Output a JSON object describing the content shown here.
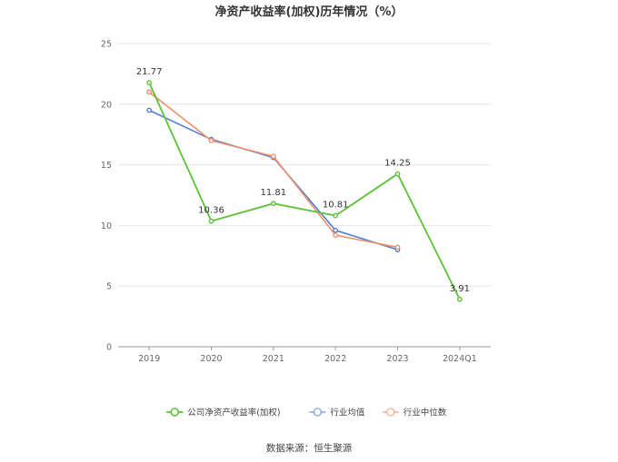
{
  "chart_data": {
    "type": "line",
    "title": "净资产收益率(加权)历年情况（%）",
    "categories": [
      "2019",
      "2020",
      "2021",
      "2022",
      "2023",
      "2024Q1"
    ],
    "ylim": [
      0,
      25
    ],
    "yticks": [
      "0",
      "5",
      "10",
      "15",
      "20",
      "25"
    ],
    "grid": true,
    "legend_position": "bottom",
    "series": [
      {
        "name": "公司净资产收益率(加权)",
        "color": "#5bc236",
        "values": [
          21.77,
          10.36,
          11.81,
          10.81,
          14.25,
          3.91
        ],
        "labels": [
          "21.77",
          "10.36",
          "11.81",
          "10.81",
          "14.25",
          "3.91"
        ]
      },
      {
        "name": "行业均值",
        "color": "#4f7fd9",
        "values": [
          19.5,
          17.1,
          15.6,
          9.6,
          8.0,
          null
        ]
      },
      {
        "name": "行业中位数",
        "color": "#f0906a",
        "values": [
          21.0,
          17.0,
          15.7,
          9.2,
          8.2,
          null
        ]
      }
    ],
    "source": "数据来源：恒生聚源"
  }
}
